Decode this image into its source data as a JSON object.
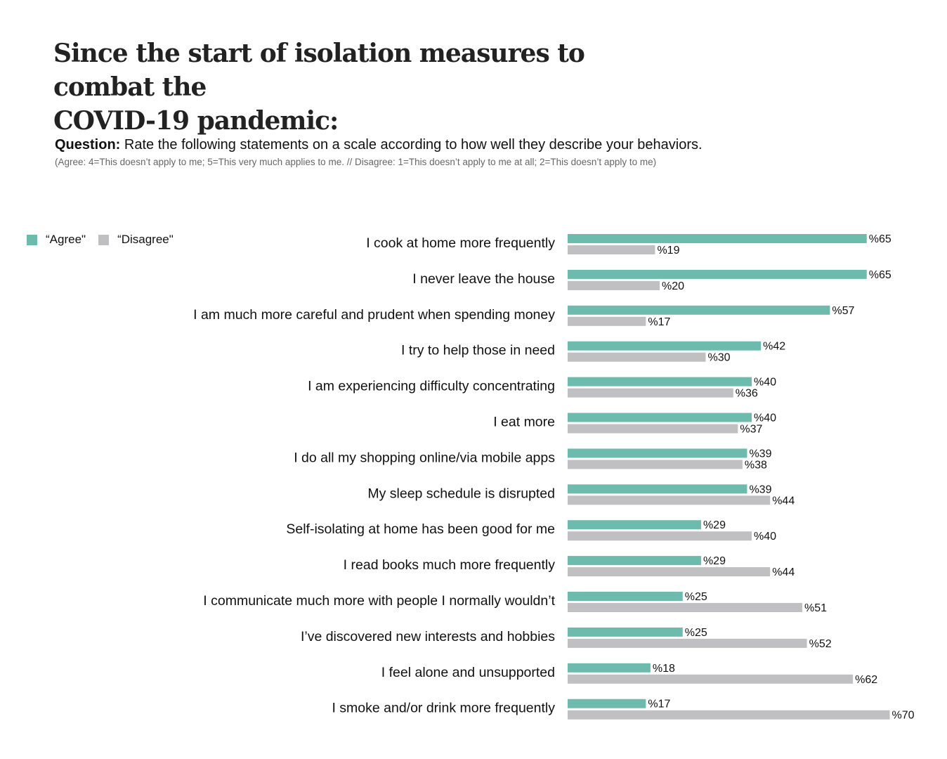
{
  "header": {
    "title_line1": "Since the start of isolation measures to combat the",
    "title_line2": "COVID-19 pandemic:",
    "question_label": "Question:",
    "question_text": " Rate the following statements on a scale according to how well they describe your behaviors.",
    "note": "(Agree: 4=This doesn’t apply to me; 5=This very much applies to me. // Disagree: 1=This doesn’t apply to me at all; 2=This doesn’t apply to me)"
  },
  "colors": {
    "agree": "#6dbbac",
    "disagree": "#c0c0c3",
    "text": "#111111"
  },
  "chart_data": {
    "type": "bar",
    "orientation": "horizontal",
    "title": "Since the start of isolation measures to combat the COVID-19 pandemic:",
    "legend_position": "top-left",
    "value_prefix": "%",
    "xlim": [
      0,
      70
    ],
    "categories": [
      "I cook at home more frequently",
      "I never leave the house",
      "I am much more careful and prudent when spending money",
      "I try to help those in need",
      "I am experiencing difficulty concentrating",
      "I eat more",
      "I do all my shopping online/via mobile apps",
      "My sleep schedule is disrupted",
      "Self-isolating at home has been good for me",
      "I read books much more frequently",
      "I communicate much more with people I normally wouldn’t",
      "I’ve discovered new interests and hobbies",
      "I feel alone and unsupported",
      "I smoke and/or drink more frequently"
    ],
    "series": [
      {
        "name": "“Agree\"",
        "values": [
          65,
          65,
          57,
          42,
          40,
          40,
          39,
          39,
          29,
          29,
          25,
          25,
          18,
          17
        ]
      },
      {
        "name": "“Disagree\"",
        "values": [
          19,
          20,
          17,
          30,
          36,
          37,
          38,
          44,
          40,
          44,
          51,
          52,
          62,
          70
        ]
      }
    ]
  }
}
